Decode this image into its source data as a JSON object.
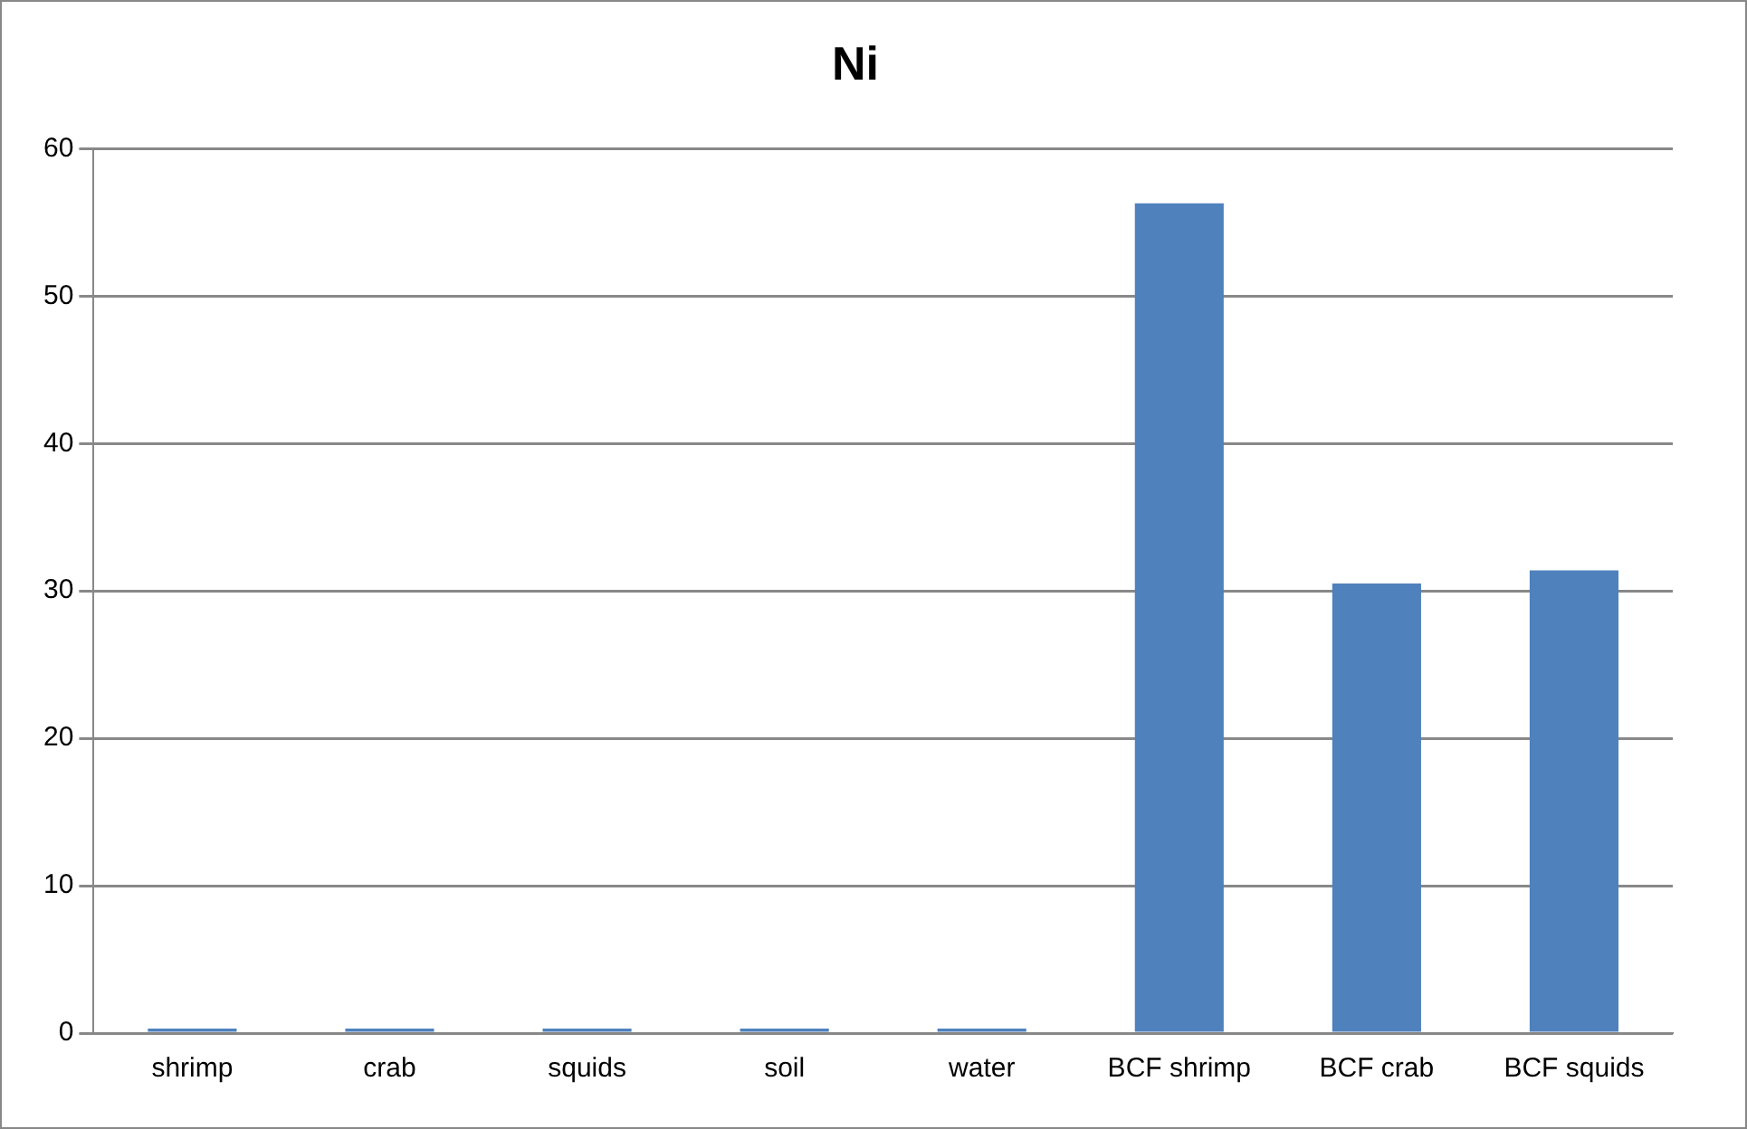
{
  "chart_data": {
    "type": "bar",
    "title": "Ni",
    "categories": [
      "shrimp",
      "crab",
      "squids",
      "soil",
      "water",
      "BCF shrimp",
      "BCF crab",
      "BCF squids"
    ],
    "values": [
      0.3,
      0.3,
      0.3,
      0.3,
      0.3,
      56.3,
      30.5,
      31.4
    ],
    "color": "#4f81bd",
    "ylim": [
      0,
      60
    ],
    "yticks": [
      0,
      10,
      20,
      30,
      40,
      50,
      60
    ],
    "grid": "y",
    "legend": false
  }
}
